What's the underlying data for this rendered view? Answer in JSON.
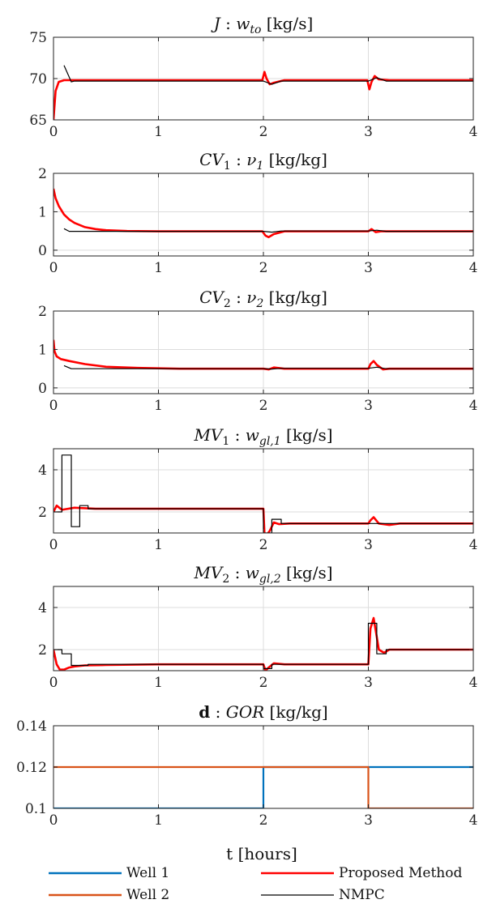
{
  "chart_data": [
    {
      "type": "line",
      "title": "J : w_to [kg/s]",
      "title_parts": {
        "pre": "J : w",
        "sub": "to",
        "post": " [kg/s]"
      },
      "xlim": [
        0,
        4
      ],
      "ylim": [
        65,
        75
      ],
      "xticks": [
        "0",
        "1",
        "2",
        "3",
        "4"
      ],
      "yticks": [
        65,
        70,
        75
      ],
      "ytick_labels": [
        "65",
        "70",
        "75"
      ],
      "grid": true,
      "series": [
        {
          "name": "Proposed Method",
          "color": "#ff0000",
          "x": [
            0,
            0.02,
            0.05,
            0.1,
            0.2,
            1.99,
            2.01,
            2.03,
            2.06,
            2.1,
            2.2,
            2.99,
            3.01,
            3.03,
            3.06,
            3.1,
            3.2,
            4
          ],
          "y": [
            65,
            68.5,
            69.6,
            69.8,
            69.8,
            69.8,
            70.8,
            70.0,
            69.3,
            69.5,
            69.8,
            69.8,
            68.7,
            69.6,
            70.3,
            69.9,
            69.8,
            69.8
          ]
        },
        {
          "name": "NMPC",
          "color": "#000000",
          "x": [
            0.1,
            0.17,
            0.2,
            2.0,
            2.08,
            2.17,
            3.0,
            3.08,
            3.17,
            4
          ],
          "y": [
            71.6,
            69.6,
            69.7,
            69.7,
            69.3,
            69.7,
            69.7,
            70.1,
            69.7,
            69.7
          ]
        }
      ]
    },
    {
      "type": "line",
      "title": "CV1 : ν1 [kg/kg]",
      "title_parts": {
        "pre": "CV",
        "sub": "1",
        "mid": " : ν",
        "sub2": "1",
        "post": " [kg/kg]"
      },
      "xlim": [
        0,
        4
      ],
      "ylim": [
        -0.15,
        2
      ],
      "xticks": [
        "0",
        "1",
        "2",
        "3",
        "4"
      ],
      "yticks": [
        0,
        1,
        2
      ],
      "ytick_labels": [
        "0",
        "1",
        "2"
      ],
      "grid": true,
      "series": [
        {
          "name": "Proposed Method",
          "color": "#ff0000",
          "x": [
            0,
            0.02,
            0.05,
            0.1,
            0.15,
            0.2,
            0.3,
            0.4,
            0.5,
            0.7,
            1.0,
            1.99,
            2.02,
            2.05,
            2.1,
            2.2,
            3.0,
            3.03,
            3.07,
            3.12,
            4
          ],
          "y": [
            1.6,
            1.35,
            1.15,
            0.93,
            0.8,
            0.71,
            0.6,
            0.55,
            0.52,
            0.5,
            0.49,
            0.49,
            0.38,
            0.34,
            0.42,
            0.49,
            0.49,
            0.55,
            0.47,
            0.49,
            0.49
          ]
        },
        {
          "name": "NMPC",
          "color": "#000000",
          "x": [
            0.1,
            0.15,
            0.2,
            2.0,
            2.08,
            2.17,
            3.0,
            3.08,
            3.17,
            4
          ],
          "y": [
            0.56,
            0.49,
            0.49,
            0.49,
            0.47,
            0.5,
            0.5,
            0.52,
            0.49,
            0.49
          ]
        }
      ]
    },
    {
      "type": "line",
      "title": "CV2 : ν2 [kg/kg]",
      "title_parts": {
        "pre": "CV",
        "sub": "2",
        "mid": " : ν",
        "sub2": "2",
        "post": " [kg/kg]"
      },
      "xlim": [
        0,
        4
      ],
      "ylim": [
        -0.15,
        2
      ],
      "xticks": [
        "0",
        "1",
        "2",
        "3",
        "4"
      ],
      "yticks": [
        0,
        1,
        2
      ],
      "ytick_labels": [
        "0",
        "1",
        "2"
      ],
      "grid": true,
      "series": [
        {
          "name": "Proposed Method",
          "color": "#ff0000",
          "x": [
            0,
            0.01,
            0.03,
            0.07,
            0.15,
            0.3,
            0.5,
            0.8,
            1.2,
            2.0,
            2.05,
            2.1,
            2.2,
            3.0,
            3.02,
            3.05,
            3.08,
            3.14,
            3.2,
            4
          ],
          "y": [
            1.25,
            0.95,
            0.82,
            0.75,
            0.7,
            0.62,
            0.55,
            0.52,
            0.5,
            0.5,
            0.48,
            0.53,
            0.5,
            0.5,
            0.62,
            0.7,
            0.6,
            0.48,
            0.5,
            0.5
          ]
        },
        {
          "name": "NMPC",
          "color": "#000000",
          "x": [
            0.1,
            0.17,
            0.2,
            2.0,
            2.08,
            2.17,
            3.0,
            3.08,
            3.17,
            4
          ],
          "y": [
            0.58,
            0.5,
            0.5,
            0.5,
            0.49,
            0.51,
            0.51,
            0.54,
            0.5,
            0.5
          ]
        }
      ]
    },
    {
      "type": "line",
      "title": "MV1 : w_gl,1 [kg/s]",
      "title_parts": {
        "pre": "MV",
        "sub": "1",
        "mid": " : w",
        "sub2": "gl,1",
        "post": " [kg/s]"
      },
      "xlim": [
        0,
        4
      ],
      "ylim": [
        1,
        5
      ],
      "xticks": [
        "0",
        "1",
        "2",
        "3",
        "4"
      ],
      "yticks": [
        2,
        4
      ],
      "ytick_labels": [
        "2",
        "4"
      ],
      "grid": true,
      "series": [
        {
          "name": "Proposed Method",
          "color": "#ff0000",
          "x": [
            0,
            0.03,
            0.08,
            0.2,
            0.4,
            1.0,
            2.0,
            2.01,
            2.03,
            2.06,
            2.1,
            2.15,
            2.25,
            3.0,
            3.02,
            3.05,
            3.1,
            3.2,
            3.3,
            4
          ],
          "y": [
            2.0,
            2.3,
            2.1,
            2.2,
            2.15,
            2.15,
            2.15,
            1.0,
            0.9,
            1.1,
            1.5,
            1.42,
            1.45,
            1.45,
            1.6,
            1.75,
            1.45,
            1.38,
            1.45,
            1.45
          ]
        },
        {
          "name": "NMPC",
          "color": "#000000",
          "x": [
            0,
            0.08,
            0.08,
            0.17,
            0.17,
            0.25,
            0.25,
            0.33,
            0.33,
            0.42,
            0.42,
            2.0,
            2.0,
            2.08,
            2.08,
            2.17,
            2.17,
            4
          ],
          "y": [
            2.0,
            2.0,
            4.7,
            4.7,
            1.3,
            1.3,
            2.3,
            2.3,
            2.15,
            2.15,
            2.15,
            2.15,
            1.0,
            1.0,
            1.65,
            1.65,
            1.45,
            1.45
          ]
        }
      ]
    },
    {
      "type": "line",
      "title": "MV2 : w_gl,2 [kg/s]",
      "title_parts": {
        "pre": "MV",
        "sub": "2",
        "mid": " : w",
        "sub2": "gl,2",
        "post": " [kg/s]"
      },
      "xlim": [
        0,
        4
      ],
      "ylim": [
        1,
        5
      ],
      "xticks": [
        "0",
        "1",
        "2",
        "3",
        "4"
      ],
      "yticks": [
        2,
        4
      ],
      "ytick_labels": [
        "2",
        "4"
      ],
      "grid": true,
      "series": [
        {
          "name": "Proposed Method",
          "color": "#ff0000",
          "x": [
            0,
            0.03,
            0.06,
            0.1,
            0.15,
            0.2,
            0.3,
            0.5,
            1.0,
            2.0,
            2.02,
            2.05,
            2.1,
            2.2,
            3.0,
            3.02,
            3.05,
            3.08,
            3.1,
            3.15,
            3.2,
            4
          ],
          "y": [
            2.0,
            1.3,
            1.05,
            1.05,
            1.15,
            1.2,
            1.25,
            1.27,
            1.3,
            1.3,
            1.0,
            1.15,
            1.35,
            1.3,
            1.3,
            3.0,
            3.5,
            2.6,
            2.0,
            1.85,
            2.0,
            2.0
          ]
        },
        {
          "name": "NMPC",
          "color": "#000000",
          "x": [
            0,
            0.08,
            0.08,
            0.17,
            0.17,
            0.33,
            0.33,
            2.0,
            2.0,
            2.08,
            2.08,
            3.0,
            3.0,
            3.08,
            3.08,
            3.17,
            3.17,
            4
          ],
          "y": [
            2.0,
            2.0,
            1.8,
            1.8,
            1.25,
            1.25,
            1.3,
            1.3,
            1.1,
            1.1,
            1.3,
            1.3,
            3.25,
            3.25,
            1.8,
            1.8,
            2.0,
            2.0
          ]
        }
      ]
    },
    {
      "type": "line",
      "title": "d : GOR [kg/kg]",
      "title_parts": {
        "pre": "d",
        "mid": " : GOR",
        "post": " [kg/kg]"
      },
      "xlim": [
        0,
        4
      ],
      "ylim": [
        0.1,
        0.14
      ],
      "xticks": [
        "0",
        "1",
        "2",
        "3",
        "4"
      ],
      "yticks": [
        0.1,
        0.12,
        0.14
      ],
      "ytick_labels": [
        "0.1",
        "0.12",
        "0.14"
      ],
      "xlabel": "t [hours]",
      "grid": true,
      "series": [
        {
          "name": "Well 1",
          "color": "#0072bd",
          "x": [
            0,
            2,
            2,
            4
          ],
          "y": [
            0.1,
            0.1,
            0.12,
            0.12
          ]
        },
        {
          "name": "Well 2",
          "color": "#d95319",
          "x": [
            0,
            3,
            3,
            4
          ],
          "y": [
            0.12,
            0.12,
            0.1,
            0.1
          ]
        }
      ]
    }
  ],
  "xlabel": "t [hours]",
  "legend": {
    "placement": "bottom",
    "items": [
      {
        "label": "Well 1",
        "color": "#0072bd"
      },
      {
        "label": "Proposed Method",
        "color": "#ff0000"
      },
      {
        "label": "Well 2",
        "color": "#d95319"
      },
      {
        "label": "NMPC",
        "color": "#000000"
      }
    ]
  }
}
